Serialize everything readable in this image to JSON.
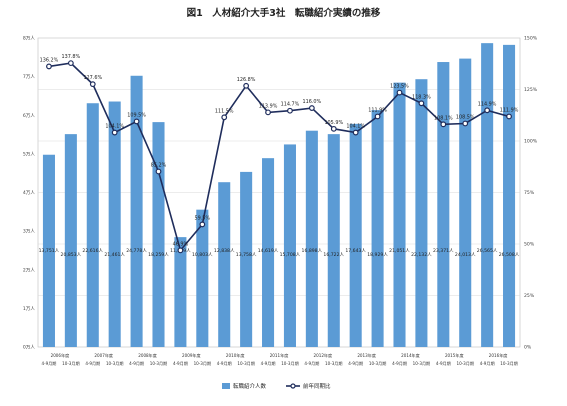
{
  "chart_data": {
    "type": "bar+line",
    "title": "図1　人材紹介大手3社　転職紹介実績の推移",
    "left_axis": {
      "ylim": [
        0,
        80000
      ],
      "ticks": [
        0,
        10000,
        20000,
        30000,
        40000,
        50000,
        60000,
        70000,
        80000
      ]
    },
    "right_axis": {
      "ylim": [
        0,
        150
      ],
      "ticks": [
        0,
        25,
        50,
        75,
        100,
        125,
        150
      ]
    },
    "categories": [
      [
        "2006年度",
        "4-9月期"
      ],
      [
        "",
        "10-3月期"
      ],
      [
        "2007年度",
        "4-9月期"
      ],
      [
        "",
        "10-3月期"
      ],
      [
        "2008年度",
        "4-9月期"
      ],
      [
        "",
        "10-3月期"
      ],
      [
        "2009年度",
        "4-9月期"
      ],
      [
        "",
        "10-3月期"
      ],
      [
        "2010年度",
        "4-9月期"
      ],
      [
        "",
        "10-3月期"
      ],
      [
        "2011年度",
        "4-9月期"
      ],
      [
        "",
        "10-3月期"
      ],
      [
        "2012年度",
        "4-9月期"
      ],
      [
        "",
        "10-3月期"
      ],
      [
        "2013年度",
        "4-9月期"
      ],
      [
        "",
        "10-3月期"
      ],
      [
        "2014年度",
        "4-9月期"
      ],
      [
        "",
        "10-3月期"
      ],
      [
        "2015年度",
        "4-9月期"
      ],
      [
        "",
        "10-3月期"
      ],
      [
        "2016年度",
        "4-9月期"
      ],
      [
        "",
        "10-3月期"
      ]
    ],
    "series": [
      {
        "name": "転職紹介人数",
        "kind": "bar",
        "color": "#5b9bd5",
        "values": [
          13751,
          20853,
          22616,
          21461,
          24778,
          18259,
          11509,
          10803,
          12838,
          13758,
          14619,
          15708,
          16898,
          16722,
          17643,
          18929,
          21051,
          22132,
          23371,
          24013,
          26565,
          26508
        ],
        "labels": [
          "13,751人",
          "20,853人",
          "22,616人",
          "21,461人",
          "24,778人",
          "18,259人",
          "11,509人",
          "10,803人",
          "12,838人",
          "13,758人",
          "14,619人",
          "15,708人",
          "16,898人",
          "16,722人",
          "17,643人",
          "18,929人",
          "21,051人",
          "22,132人",
          "23,371人",
          "24,013人",
          "26,565人",
          "26,508人"
        ]
      },
      {
        "name": "前年同期比",
        "kind": "line",
        "axis": "right",
        "color": "#1f2d5c",
        "values": [
          136.2,
          137.8,
          127.6,
          104.1,
          109.5,
          85.2,
          46.9,
          59.5,
          111.5,
          126.8,
          113.9,
          114.7,
          116.0,
          105.9,
          104.1,
          111.9,
          123.5,
          118.3,
          108.1,
          108.5,
          114.9,
          111.9
        ],
        "labels": [
          "136.2%",
          "137.8%",
          "127.6%",
          "104.1%",
          "109.5%",
          "85.2%",
          "46.9%",
          "59.5%",
          "111.5%",
          "126.8%",
          "113.9%",
          "114.7%",
          "116.0%",
          "105.9%",
          "104.1%",
          "111.9%",
          "123.5%",
          "118.3%",
          "108.1%",
          "108.5%",
          "114.9%",
          "111.9%"
        ]
      }
    ],
    "bar_display_heights": [
      56000,
      62000,
      71000,
      71500,
      79000,
      65500,
      32000,
      40000,
      48000,
      51000,
      55000,
      59000,
      63000,
      62000,
      65000,
      69000,
      77000,
      78000,
      83000,
      84000,
      88500,
      88000
    ],
    "legend": {
      "position": "bottom",
      "items": [
        "転職紹介人数",
        "前年同期比"
      ]
    },
    "grid": true
  }
}
